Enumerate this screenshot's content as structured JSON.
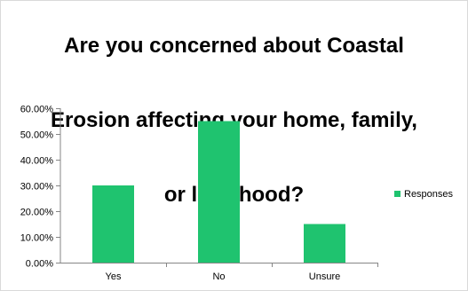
{
  "chart_data": {
    "type": "bar",
    "title_lines": [
      "Are you concerned about Coastal",
      "Erosion affecting your home, family,",
      "or livelihood?"
    ],
    "categories": [
      "Yes",
      "No",
      "Unsure"
    ],
    "series": [
      {
        "name": "Responses",
        "values": [
          0.3,
          0.55,
          0.15
        ],
        "color": "#1fc36f"
      }
    ],
    "ylim": [
      0,
      0.6
    ],
    "yticks": [
      "0.00%",
      "10.00%",
      "20.00%",
      "30.00%",
      "40.00%",
      "50.00%",
      "60.00%"
    ],
    "xlabel": "",
    "ylabel": "",
    "grid": false,
    "legend_position": "right"
  }
}
